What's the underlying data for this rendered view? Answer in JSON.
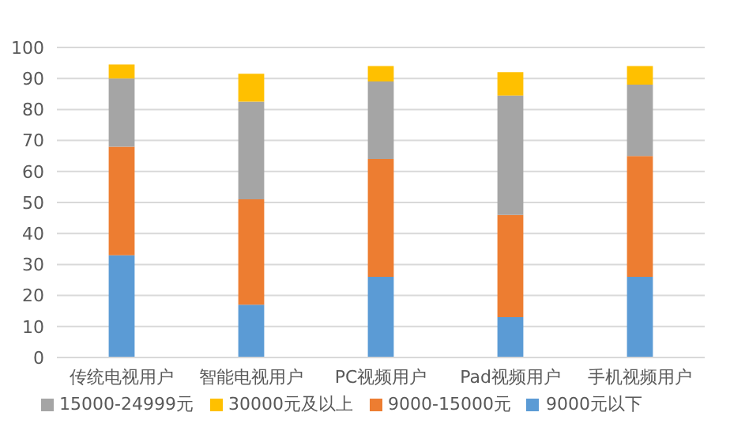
{
  "chart_data": {
    "type": "bar",
    "stacked": true,
    "categories": [
      "传统电视用户",
      "智能电视用户",
      "PC视频用户",
      "Pad视频用户",
      "手机视频用户"
    ],
    "series": [
      {
        "name": "9000元以下",
        "color": "#5b9bd5",
        "values": [
          33,
          17,
          26,
          13,
          26
        ]
      },
      {
        "name": "9000-15000元",
        "color": "#ed7d31",
        "values": [
          35,
          34,
          38,
          33,
          39
        ]
      },
      {
        "name": "15000-24999元",
        "color": "#a5a5a5",
        "values": [
          22,
          31.5,
          25,
          38.5,
          23
        ]
      },
      {
        "name": "30000元及以上",
        "color": "#ffc000",
        "values": [
          4.5,
          9,
          5,
          7.5,
          6
        ]
      }
    ],
    "ylim": [
      0,
      100
    ],
    "yticks": [
      0,
      10,
      20,
      30,
      40,
      50,
      60,
      70,
      80,
      90,
      100
    ],
    "grid": "y",
    "legend": "bottom"
  }
}
